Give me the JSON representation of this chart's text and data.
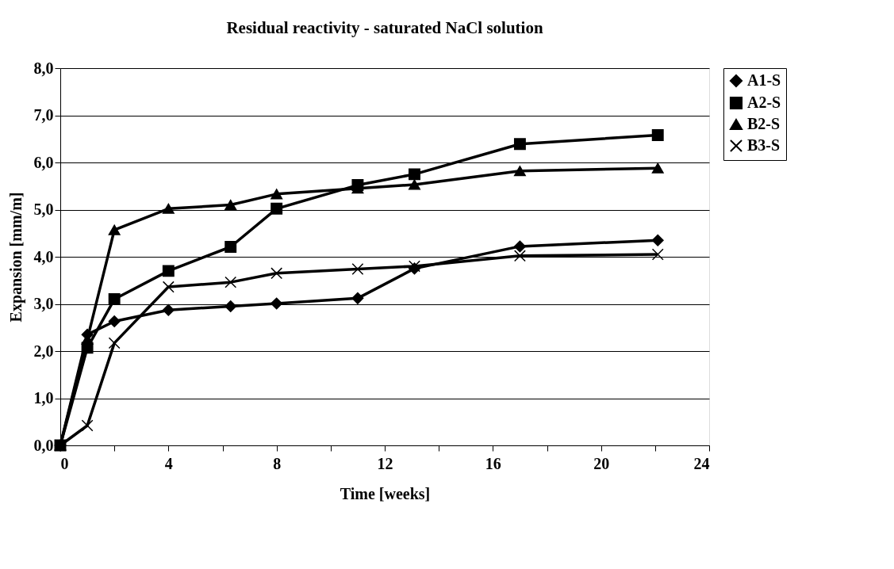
{
  "chart_data": {
    "type": "line",
    "title": "Residual reactivity - saturated NaCl solution",
    "xlabel": "Time [weeks]",
    "ylabel": "Expansion [mm/m]",
    "x": [
      0,
      1,
      2,
      4,
      6.3,
      8,
      11,
      13.1,
      17,
      22.1
    ],
    "series": [
      {
        "name": "A1-S",
        "color": "#000000",
        "marker": "diamond",
        "values": [
          0,
          2.35,
          2.63,
          2.87,
          2.95,
          3.01,
          3.12,
          3.75,
          4.22,
          4.35
        ]
      },
      {
        "name": "A2-S",
        "color": "#000000",
        "marker": "square",
        "values": [
          0,
          2.07,
          3.1,
          3.7,
          4.21,
          5.02,
          5.52,
          5.75,
          6.39,
          6.58
        ]
      },
      {
        "name": "B2-S",
        "color": "#000000",
        "marker": "triangle",
        "values": [
          0,
          2.25,
          4.57,
          5.02,
          5.1,
          5.33,
          5.45,
          5.53,
          5.82,
          5.88
        ]
      },
      {
        "name": "B3-S",
        "color": "#000000",
        "marker": "cross",
        "values": [
          0,
          0.42,
          2.17,
          3.36,
          3.46,
          3.65,
          3.74,
          3.8,
          4.02,
          4.05
        ]
      }
    ],
    "xlim": [
      0,
      24
    ],
    "xticks": [
      0,
      {
        "value": 2,
        "label": null
      },
      4,
      {
        "value": 6,
        "label": null
      },
      8,
      {
        "value": 10,
        "label": null
      },
      12,
      {
        "value": 14,
        "label": null
      },
      16,
      {
        "value": 18,
        "label": null
      },
      20,
      {
        "value": 22,
        "label": null
      },
      24
    ],
    "ylim": [
      0,
      8
    ],
    "yticks": [
      {
        "value": 0,
        "label": "0,0"
      },
      {
        "value": 1,
        "label": "1,0"
      },
      {
        "value": 2,
        "label": "2,0"
      },
      {
        "value": 3,
        "label": "3,0"
      },
      {
        "value": 4,
        "label": "4,0"
      },
      {
        "value": 5,
        "label": "5,0"
      },
      {
        "value": 6,
        "label": "6,0"
      },
      {
        "value": 7,
        "label": "7,0"
      },
      {
        "value": 8,
        "label": "8,0"
      }
    ],
    "grid": "y",
    "legend": "right",
    "line_style": "solid"
  }
}
